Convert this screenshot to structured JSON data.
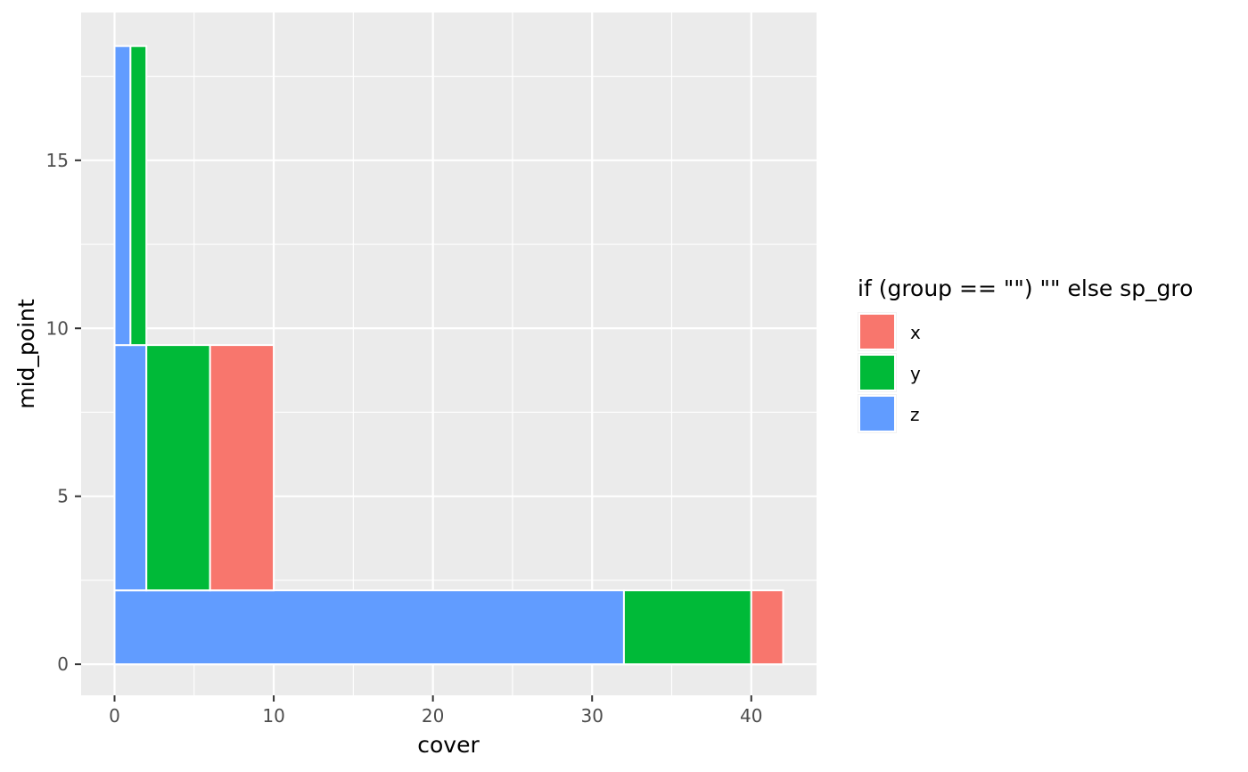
{
  "chart_data": {
    "type": "bar",
    "orientation": "horizontal-stacked",
    "xlabel": "cover",
    "ylabel": "mid_point",
    "xlim": [
      -2.1,
      44.1
    ],
    "ylim": [
      -0.925,
      19.4
    ],
    "x_ticks": [
      0,
      10,
      20,
      30,
      40
    ],
    "y_ticks": [
      0,
      5,
      10,
      15
    ],
    "grid": true,
    "legend": {
      "title": "if (group == \"\") \"\" else sp_gro",
      "placement": "right",
      "entries": [
        {
          "label": "x",
          "color": "#F8766D"
        },
        {
          "label": "y",
          "color": "#00BA38"
        },
        {
          "label": "z",
          "color": "#619CFF"
        }
      ]
    },
    "bars": [
      {
        "group": "z",
        "x0": 0,
        "x1": 32,
        "y0": 0,
        "y1": 2.2
      },
      {
        "group": "y",
        "x0": 32,
        "x1": 40,
        "y0": 0,
        "y1": 2.2
      },
      {
        "group": "x",
        "x0": 40,
        "x1": 42,
        "y0": 0,
        "y1": 2.2
      },
      {
        "group": "z",
        "x0": 0,
        "x1": 2,
        "y0": 2.2,
        "y1": 9.5
      },
      {
        "group": "y",
        "x0": 2,
        "x1": 6,
        "y0": 2.2,
        "y1": 9.5
      },
      {
        "group": "x",
        "x0": 6,
        "x1": 10,
        "y0": 2.2,
        "y1": 9.5
      },
      {
        "group": "z",
        "x0": 0,
        "x1": 1,
        "y0": 9.5,
        "y1": 18.4
      },
      {
        "group": "y",
        "x0": 1,
        "x1": 2,
        "y0": 9.5,
        "y1": 18.4
      }
    ]
  }
}
